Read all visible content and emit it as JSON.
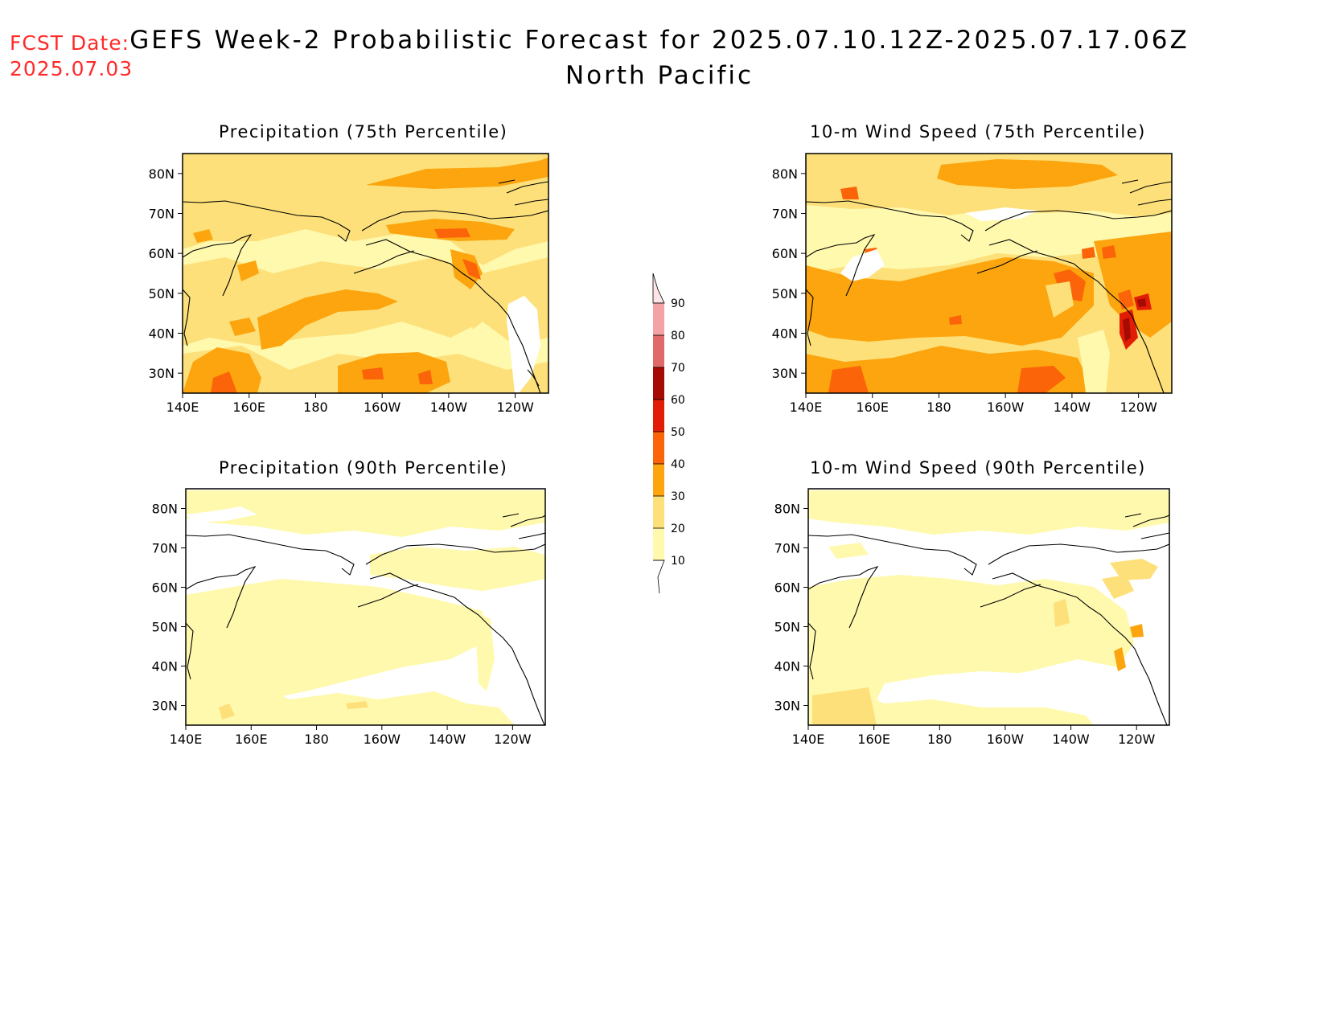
{
  "forecast_date": {
    "label": "FCST Date:",
    "value": "2025.07.03"
  },
  "title": {
    "line1": "GEFS Week-2 Probabilistic Forecast for 2025.07.10.12Z-2025.07.17.06Z",
    "line2": "North Pacific"
  },
  "axes": {
    "lat_labels": [
      "80N",
      "70N",
      "60N",
      "50N",
      "40N",
      "30N"
    ],
    "lon_labels": [
      "140E",
      "160E",
      "180",
      "160W",
      "140W",
      "120W"
    ]
  },
  "panels": [
    {
      "id": "precip75",
      "title": "Precipitation (75th Percentile)"
    },
    {
      "id": "wind75",
      "title": "10-m Wind Speed (75th Percentile)"
    },
    {
      "id": "precip90",
      "title": "Precipitation (90th Percentile)"
    },
    {
      "id": "wind90",
      "title": "10-m Wind Speed (90th Percentile)"
    }
  ],
  "colorbar": {
    "levels": [
      "90",
      "80",
      "70",
      "60",
      "50",
      "40",
      "30",
      "20",
      "10"
    ],
    "colors": {
      "10-20": "#fff9ae",
      "20-30": "#fde07a",
      "30-40": "#fca50e",
      "40-50": "#fb6408",
      "50-60": "#e11d06",
      "60-70": "#a50b02",
      "70-80": "#e0696a",
      "80-90": "#f4a2a5",
      "90+": "#fde4e6"
    }
  }
}
